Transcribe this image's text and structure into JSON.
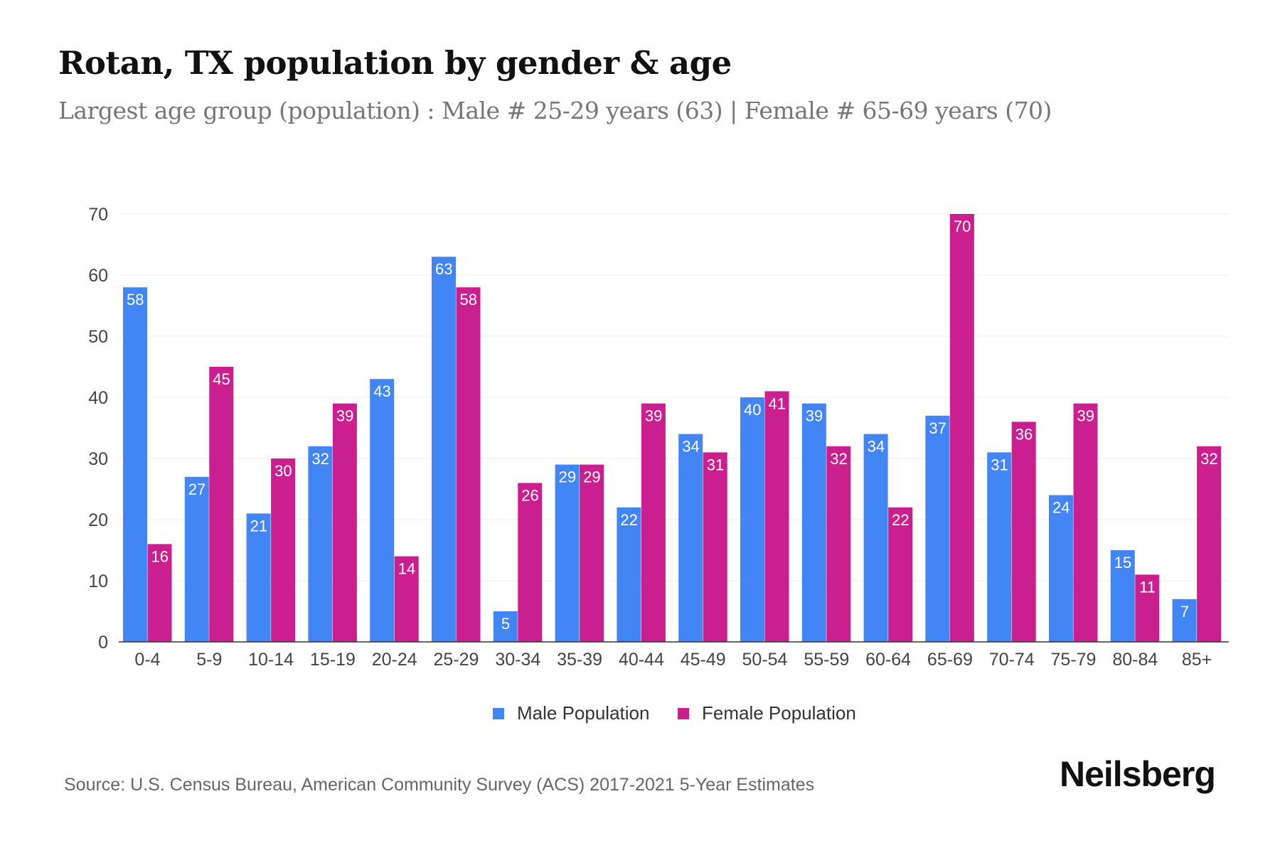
{
  "title": "Rotan, TX population by gender & age",
  "subtitle": "Largest age group (population) : Male # 25-29 years (63) | Female # 65-69 years (70)",
  "source": "Source: U.S. Census Bureau, American Community Survey (ACS) 2017-2021 5-Year Estimates",
  "logo": "Neilsberg",
  "chart_data": {
    "type": "bar",
    "categories": [
      "0-4",
      "5-9",
      "10-14",
      "15-19",
      "20-24",
      "25-29",
      "30-34",
      "35-39",
      "40-44",
      "45-49",
      "50-54",
      "55-59",
      "60-64",
      "65-69",
      "70-74",
      "75-79",
      "80-84",
      "85+"
    ],
    "series": [
      {
        "name": "Male Population",
        "color": "#4285f4",
        "values": [
          58,
          27,
          21,
          32,
          43,
          63,
          5,
          29,
          22,
          34,
          40,
          39,
          34,
          37,
          31,
          24,
          15,
          7
        ]
      },
      {
        "name": "Female Population",
        "color": "#cc1f8f",
        "values": [
          16,
          45,
          30,
          39,
          14,
          58,
          26,
          29,
          39,
          31,
          41,
          32,
          22,
          70,
          36,
          39,
          11,
          32
        ]
      }
    ],
    "yticks": [
      0,
      10,
      20,
      30,
      40,
      50,
      60,
      70
    ],
    "ylim": [
      0,
      70
    ],
    "grid": true,
    "legend": "bottom-center",
    "data_labels": true
  }
}
